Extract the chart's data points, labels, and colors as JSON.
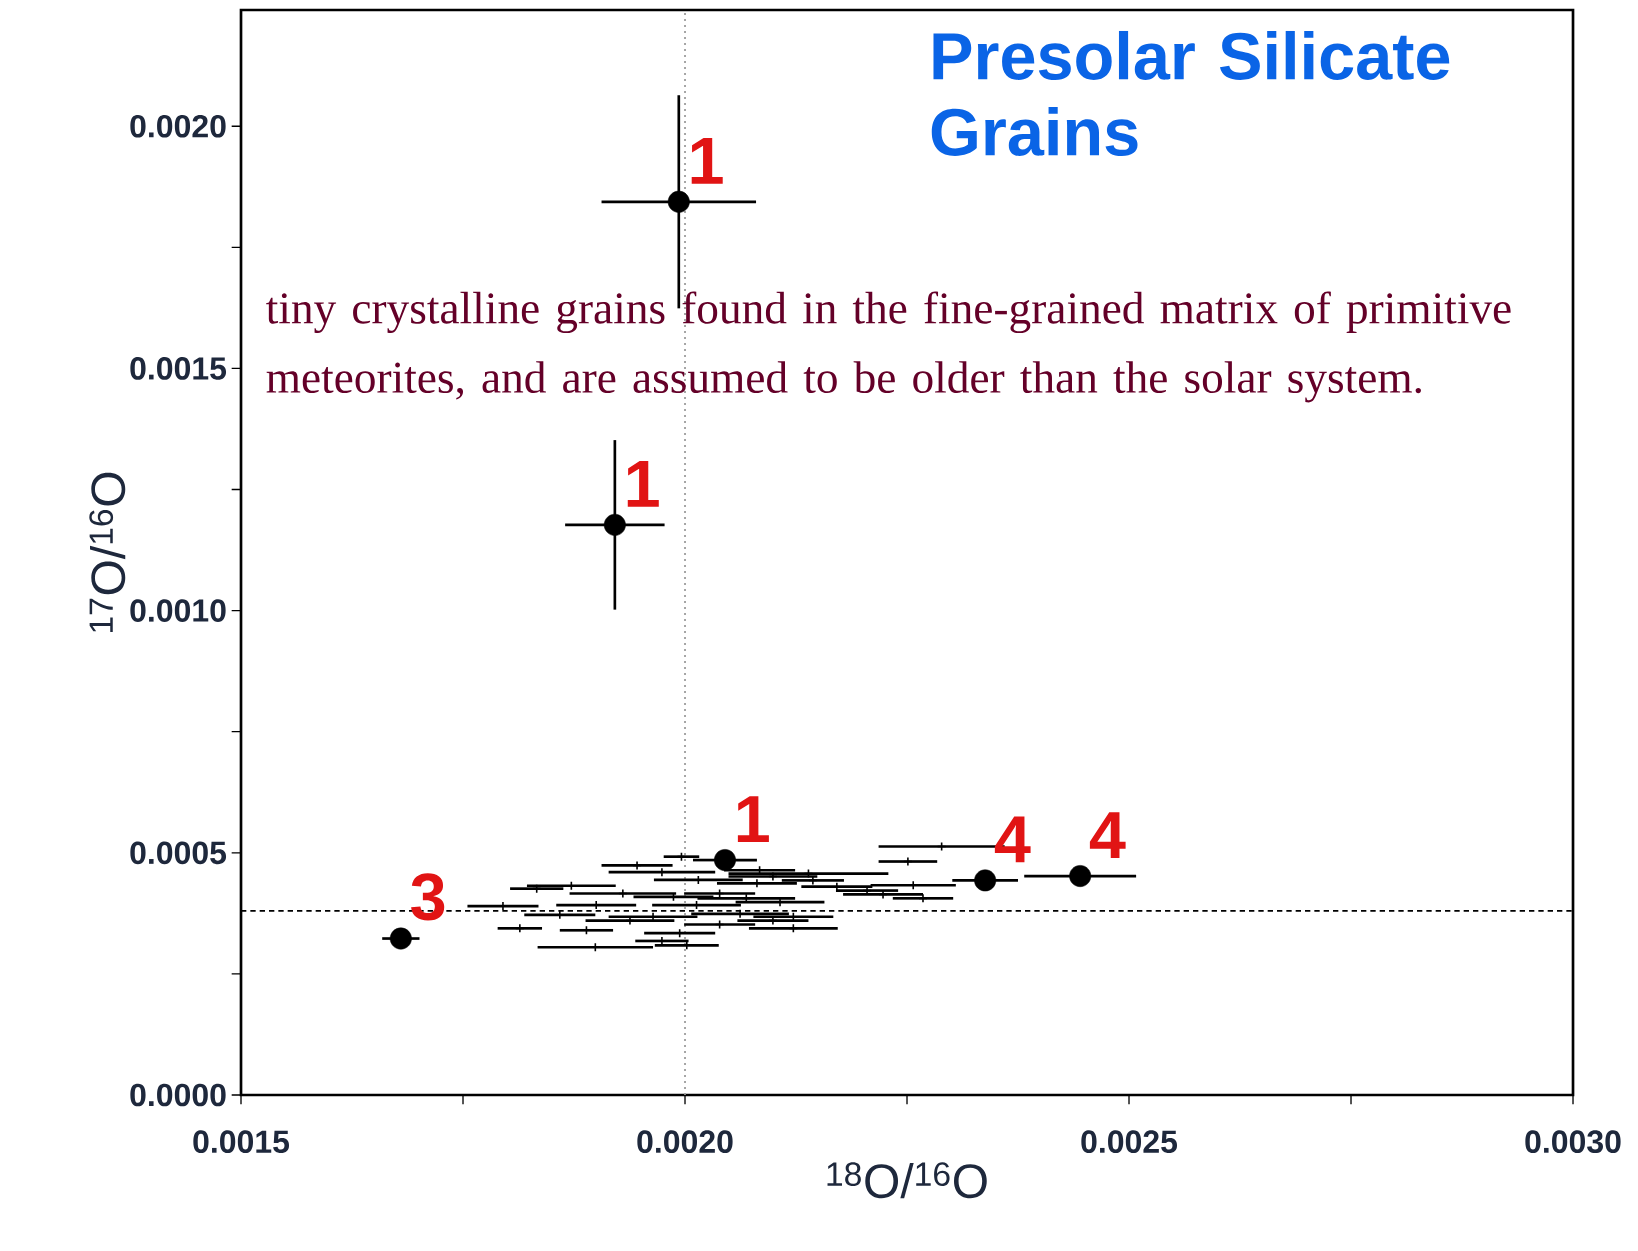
{
  "chart_data": {
    "type": "scatter",
    "title": "Presolar Silicate Grains",
    "xlabel": "$^{18}$O/$^{16}$O",
    "ylabel": "$^{17}$O/$^{16}$O",
    "xlim": [
      0.0015,
      0.003
    ],
    "ylim": [
      0,
      0.00224
    ],
    "xticks": [
      0.0015,
      {
        "value": 0.00175,
        "label": null
      },
      {
        "value": 0.002,
        "label": "0.0020"
      },
      {
        "value": 0.00225,
        "label": null
      },
      0.0025,
      {
        "value": 0.00275,
        "label": null
      },
      {
        "value": 0.003,
        "label": "0.0030"
      }
    ],
    "yticks": [
      {
        "value": 0,
        "label": "0.0000"
      },
      {
        "value": 0.00025,
        "label": null
      },
      0.0005,
      {
        "value": 0.00075,
        "label": null
      },
      {
        "value": 0.001,
        "label": "0.0010"
      },
      {
        "value": 0.00125,
        "label": null
      },
      0.0015,
      {
        "value": 0.00175,
        "label": null
      },
      {
        "value": 0.002,
        "label": "0.0020"
      }
    ],
    "grid": false,
    "marker": "circle",
    "series": [
      {
        "color": "#000000",
        "x": [
          0.001993,
          0.001921,
          0.002045,
          0.002338,
          0.002445,
          0.00168
        ],
        "values": [
          0.001844,
          0.001177,
          0.000485,
          0.000443,
          0.000452,
          0.000323
        ],
        "errors": [
          0.00022,
          0.000175,
          null,
          null,
          null,
          null
        ],
        "xerrors": [
          8.7e-05,
          5.6e-05,
          3.6e-05,
          3.7e-05,
          6.3e-05,
          2.1e-05
        ]
      },
      {
        "color": "#000000",
        "marker": "cross",
        "x": [
          0.002289,
          0.002251,
          0.002257,
          0.002268,
          0.002223,
          0.002205,
          0.002171,
          0.002139,
          0.002122,
          0.002002,
          0.001974,
          0.001899,
          0.001814,
          0.001795,
          0.001833,
          0.001872,
          0.001889,
          0.001946,
          0.001974,
          0.001996,
          0.002084,
          0.002099,
          0.002081,
          0.002015,
          0.00193,
          0.0019,
          0.001859,
          0.002039,
          0.002069,
          0.002107,
          0.002122,
          0.002099,
          0.002039,
          0.001994,
          0.001938,
          0.001964,
          0.002013,
          0.001987,
          0.002144,
          0.002062
        ],
        "values": [
          0.000513,
          0.000482,
          0.000433,
          0.000406,
          0.000414,
          0.000422,
          0.00043,
          0.000457,
          0.000344,
          0.000309,
          0.000318,
          0.000305,
          0.000344,
          0.00039,
          0.000426,
          0.000432,
          0.00034,
          0.000474,
          0.00046,
          0.000492,
          0.000464,
          0.000451,
          0.000437,
          0.000444,
          0.000416,
          0.000392,
          0.000372,
          0.000416,
          0.000406,
          0.000398,
          0.000368,
          0.00036,
          0.000352,
          0.000334,
          0.00036,
          0.000368,
          0.000392,
          0.000409,
          0.000443,
          0.000374
        ],
        "xerrors": [
          7.1e-05,
          3.3e-05,
          4.8e-05,
          3.4e-05,
          4.5e-05,
          3.5e-05,
          4e-05,
          9e-05,
          5e-05,
          3.6e-05,
          3e-05,
          6.5e-05,
          2.5e-05,
          4e-05,
          3e-05,
          5e-05,
          3e-05,
          4e-05,
          6e-05,
          2e-05,
          4e-05,
          5e-05,
          4.5e-05,
          5e-05,
          6e-05,
          4.5e-05,
          4e-05,
          4e-05,
          5.5e-05,
          5e-05,
          4.5e-05,
          4e-05,
          4e-05,
          4e-05,
          5e-05,
          5e-05,
          5e-05,
          4.5e-05,
          3.5e-05,
          5.5e-05
        ]
      }
    ],
    "ref_lines": [
      {
        "axis": "x",
        "value": 0.002,
        "color": "#999999",
        "line_style": "dotted"
      },
      {
        "axis": "y",
        "value": 0.00038,
        "color": "#000000",
        "line_style": "dashed"
      }
    ],
    "annotations": [
      "tiny crystalline grains found in the fine-grained matrix of primitive meteorites, and are assumed to be older than the solar system.",
      {
        "text": "1",
        "x": 0.001993,
        "y": 0.001844
      },
      {
        "text": "1",
        "x": 0.001921,
        "y": 0.001177
      },
      {
        "text": "1",
        "x": 0.002045,
        "y": 0.000485
      },
      {
        "text": "4",
        "x": 0.002445,
        "y": 0.000452
      },
      {
        "text": "4",
        "x": 0.002338,
        "y": 0.000443
      },
      {
        "text": "3",
        "x": 0.00168,
        "y": 0.000323
      }
    ]
  }
}
